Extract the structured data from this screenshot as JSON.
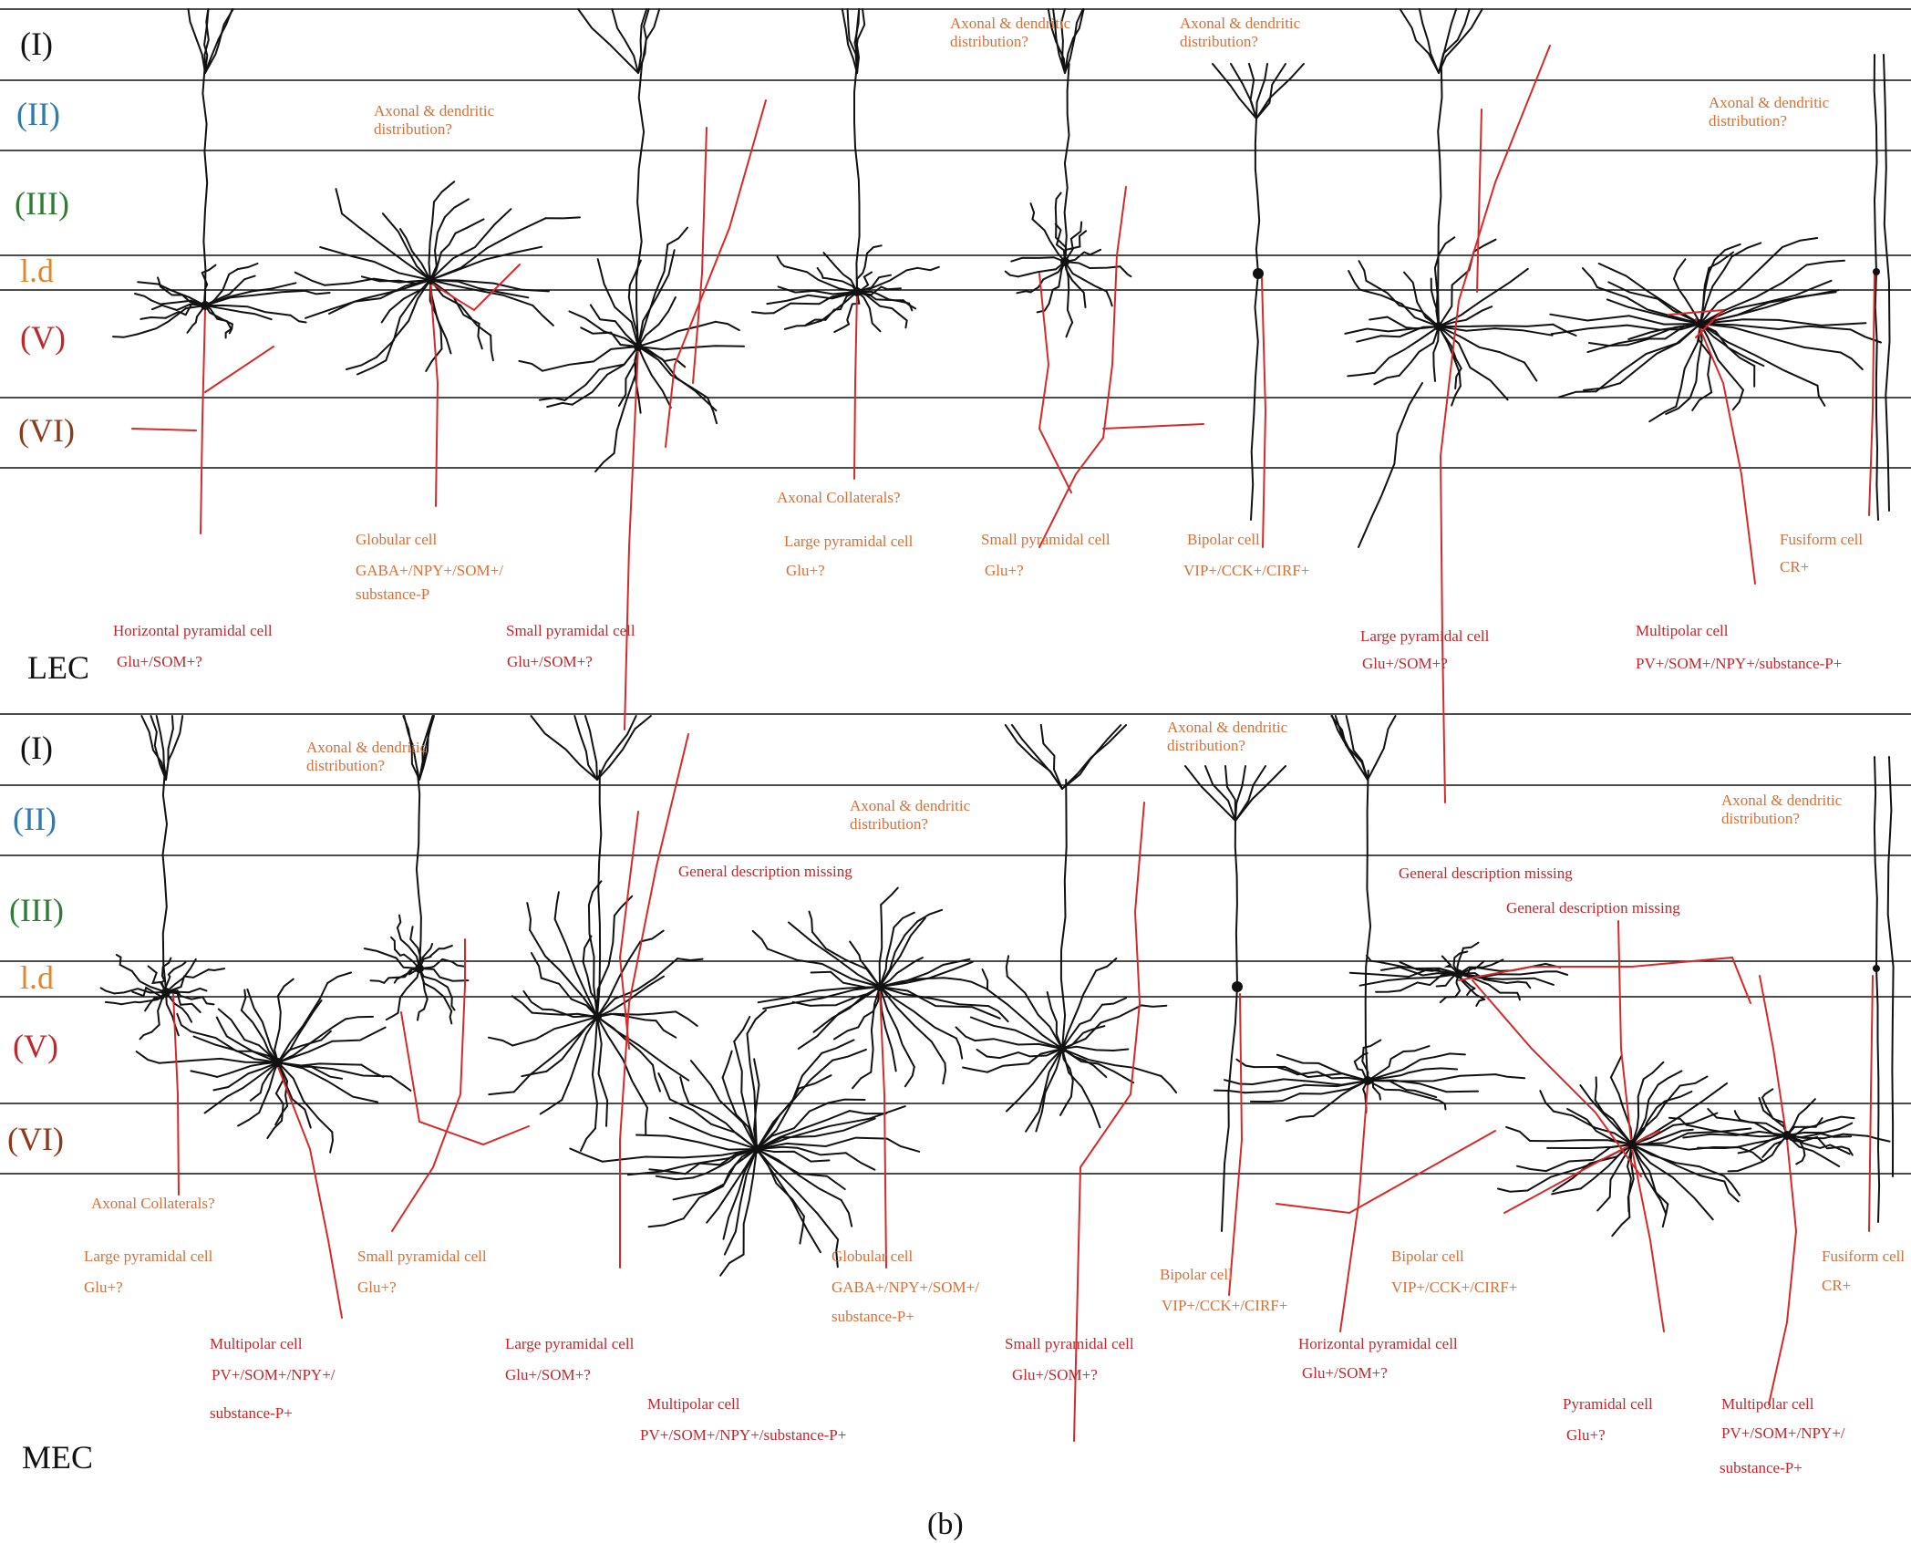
{
  "colors": {
    "layer_I": "#111111",
    "layer_II": "#2e7bb0",
    "layer_III": "#2e7d32",
    "layer_ld": "#e0872a",
    "layer_V": "#c1272d",
    "layer_VI": "#8b3a1a",
    "dendrite": "#111111",
    "axon": "#d62a2a",
    "annotation_orange": "#d4703a",
    "annotation_red": "#c1272d"
  },
  "layers": [
    "(I)",
    "(II)",
    "(III)",
    "l.d",
    "(V)",
    "(VI)"
  ],
  "regions": {
    "lec": "LEC",
    "mec": "MEC"
  },
  "panel_label": "(b)",
  "lec": {
    "notes": [
      "Axonal & dendritic distribution?",
      "Axonal & dendritic distribution?",
      "Axonal & dendritic distribution?",
      "Axonal & dendritic distribution?",
      "Axonal Collaterals?"
    ],
    "cells": [
      {
        "name": "Horizontal pyramidal cell",
        "markers": "Glu+/SOM+?"
      },
      {
        "name": "Globular cell",
        "markers_1": "GABA+/NPY+/SOM+/",
        "markers_2": "substance-P"
      },
      {
        "name": "Small pyramidal cell",
        "markers": "Glu+/SOM+?"
      },
      {
        "name": "Large pyramidal cell",
        "markers": "Glu+?"
      },
      {
        "name": "Small pyramidal cell",
        "markers": "Glu+?"
      },
      {
        "name": "Bipolar cell",
        "markers": "VIP+/CCK+/CIRF+"
      },
      {
        "name": "Large pyramidal cell",
        "markers": "Glu+/SOM+?"
      },
      {
        "name": "Multipolar cell",
        "markers": "PV+/SOM+/NPY+/substance-P+"
      },
      {
        "name": "Fusiform cell",
        "markers": "CR+"
      }
    ]
  },
  "mec": {
    "notes": [
      "Axonal & dendritic distribution?",
      "Axonal & dendritic distribution?",
      "Axonal & dendritic distribution?",
      "Axonal & dendritic distribution?",
      "General description missing",
      "General description missing",
      "General description missing",
      "Axonal Collaterals?"
    ],
    "cells": [
      {
        "name": "Large pyramidal cell",
        "markers": "Glu+?"
      },
      {
        "name": "Multipolar cell",
        "markers_1": "PV+/SOM+/NPY+/",
        "markers_2": "substance-P+"
      },
      {
        "name": "Small pyramidal cell",
        "markers": "Glu+?"
      },
      {
        "name": "Large pyramidal cell",
        "markers": "Glu+/SOM+?"
      },
      {
        "name": "Multipolar cell",
        "markers": "PV+/SOM+/NPY+/substance-P+"
      },
      {
        "name": "Globular cell",
        "markers_1": "GABA+/NPY+/SOM+/",
        "markers_2": "substance-P+"
      },
      {
        "name": "Small pyramidal cell",
        "markers": "Glu+/SOM+?"
      },
      {
        "name": "Bipolar cell",
        "markers": "VIP+/CCK+/CIRF+"
      },
      {
        "name": "Horizontal pyramidal cell",
        "markers": "Glu+/SOM+?"
      },
      {
        "name": "Bipolar cell",
        "markers": "VIP+/CCK+/CIRF+"
      },
      {
        "name": "Pyramidal cell",
        "markers": "Glu+?"
      },
      {
        "name": "Multipolar cell",
        "markers_1": "PV+/SOM+/NPY+/",
        "markers_2": "substance-P+"
      },
      {
        "name": "Fusiform cell",
        "markers": "CR+"
      }
    ]
  }
}
